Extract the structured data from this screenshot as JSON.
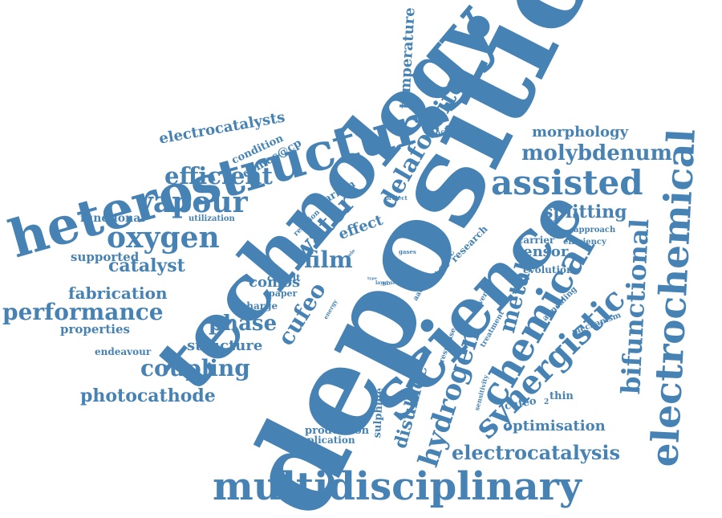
{
  "colors": {
    "ink": "#4682b4",
    "background": "#ffffff"
  },
  "words": [
    "deposition",
    "technology",
    "science",
    "heterostructure",
    "multidisciplinary",
    "electrochemical",
    "chemical",
    "synergistic",
    "hydrogen",
    "delafossite",
    "assisted",
    "vapour",
    "oxygen",
    "water",
    "molybdenum",
    "bifunctional",
    "efficient",
    "film",
    "electrocatalysis",
    "cufeo",
    "coupling",
    "performance",
    "fabrication",
    "disulfide",
    "temperature",
    "metal",
    "phase",
    "catalyst",
    "splitting",
    "photocathode",
    "morphology",
    "electrocatalysts",
    "comos",
    "optimisation",
    "structure",
    "sensor",
    "properties",
    "supported",
    "effect",
    "functional",
    "comos@cp",
    "cufeo",
    "thin",
    "2",
    "condition",
    "topic",
    "sulphide",
    "carbon",
    "research",
    "cobalt",
    "production",
    "charge",
    "carrier",
    "evolution",
    "endeavour",
    "application",
    "approach",
    "paper",
    "mechanism",
    "utilization",
    "efficiency",
    "reaction",
    "treatment",
    "response",
    "thickness",
    "annealing",
    "surface",
    "aacvd",
    "sensitivity",
    "diverse",
    "project",
    "energy",
    "binary",
    "self",
    "hole",
    "gases",
    "layer",
    "type"
  ]
}
